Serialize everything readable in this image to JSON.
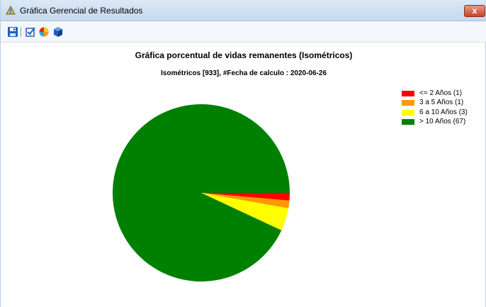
{
  "window": {
    "title": "Gráfica Gerencial de Resultados",
    "close_label": "x"
  },
  "toolbar": {
    "buttons": [
      {
        "name": "save",
        "icon": "save-icon"
      },
      {
        "name": "check",
        "icon": "checkbox-icon"
      },
      {
        "name": "chart",
        "icon": "pie-chart-icon"
      },
      {
        "name": "cube",
        "icon": "cube-icon"
      }
    ]
  },
  "chart_data": {
    "type": "pie",
    "title": "Gráfica porcentual de vidas remanentes (Isométricos)",
    "subtitle": "Isométricos [933], #Fecha de calculo : 2020-06-26",
    "legend_position": "top-right",
    "categories": [
      "<= 2 Años (1)",
      "3 a 5 Años (1)",
      "6 a 10 Años (3)",
      "> 10 Años (67)"
    ],
    "values": [
      1,
      1,
      3,
      67
    ],
    "colors": [
      "#ff0000",
      "#ff9900",
      "#ffff00",
      "#008000"
    ]
  }
}
